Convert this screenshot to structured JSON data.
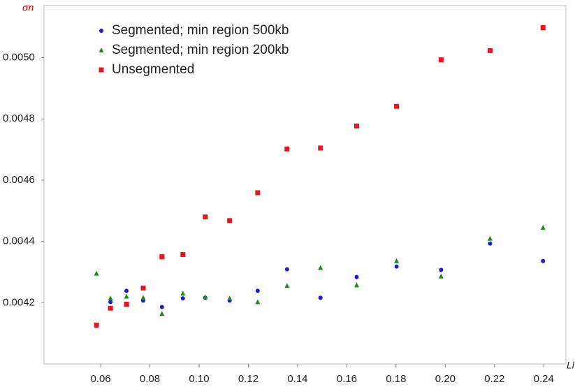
{
  "chart_data": {
    "type": "scatter",
    "ylabel": "σn",
    "xlabel": "Ll",
    "xlim": [
      0.037,
      0.249
    ],
    "ylim": [
      0.004,
      0.00517
    ],
    "xticks": [
      0.06,
      0.08,
      {
        "value": 0.1,
        "label": "0.10"
      },
      0.12,
      0.14,
      0.16,
      0.18,
      {
        "value": 0.2,
        "label": "0.20"
      },
      0.22,
      0.24
    ],
    "yticks": [
      {
        "value": 0.0042,
        "label": "0.0042"
      },
      {
        "value": 0.0044,
        "label": "0.0044"
      },
      {
        "value": 0.0046,
        "label": "0.0046"
      },
      {
        "value": 0.0048,
        "label": "0.0048"
      },
      {
        "value": 0.005,
        "label": "0.0050"
      }
    ],
    "x": [
      0.0583,
      0.064,
      0.0705,
      0.0773,
      0.0849,
      0.0934,
      0.1025,
      0.1124,
      0.1238,
      0.1357,
      0.1493,
      0.164,
      0.1802,
      0.1983,
      0.2182,
      0.2397
    ],
    "series": [
      {
        "name": "Segmented; min region 500kb",
        "color": "#1a1adc",
        "marker": "circle",
        "values": [
          0.004125,
          0.004202,
          0.004239,
          0.004207,
          0.004186,
          0.004214,
          0.004216,
          0.004207,
          0.004239,
          0.004309,
          0.004216,
          0.004284,
          0.004318,
          0.004307,
          0.004393,
          0.004336
        ]
      },
      {
        "name": "Segmented; min region 200kb",
        "color": "#1e8a1e",
        "marker": "triangle",
        "values": [
          0.004295,
          0.004214,
          0.00422,
          0.004216,
          0.004164,
          0.00423,
          0.004218,
          0.004214,
          0.004202,
          0.004255,
          0.004314,
          0.004257,
          0.004336,
          0.004286,
          0.004409,
          0.004445
        ]
      },
      {
        "name": "Unsegmented",
        "color": "#e8141e",
        "marker": "square",
        "values": [
          0.004127,
          0.004182,
          0.004195,
          0.004248,
          0.00435,
          0.004357,
          0.00448,
          0.004468,
          0.004559,
          0.004702,
          0.004705,
          0.004777,
          0.004841,
          0.004993,
          0.005023,
          0.005098
        ]
      }
    ]
  }
}
